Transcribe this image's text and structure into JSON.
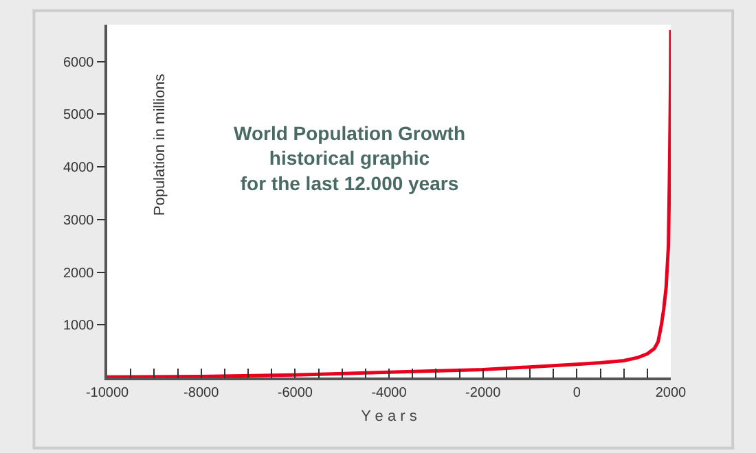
{
  "chart_data": {
    "type": "line",
    "title": "World Population Growth\nhistorical graphic\nfor the last 12.000 years",
    "xlabel": "Y e a r s",
    "ylabel": "Population in millions",
    "x": [
      -10000,
      -8000,
      -6000,
      -4000,
      -2000,
      0,
      500,
      1000,
      1300,
      1500,
      1650,
      1730,
      1800,
      1850,
      1900,
      1950,
      1970,
      1985,
      1995,
      2000
    ],
    "series": [
      {
        "color": "#e8001c",
        "values": [
          10,
          20,
          50,
          100,
          150,
          250,
          280,
          320,
          380,
          450,
          550,
          680,
          1000,
          1300,
          1700,
          2500,
          3700,
          4800,
          5700,
          6600
        ]
      }
    ],
    "xlim": [
      -10000,
      2000
    ],
    "ylim": [
      0,
      6700
    ],
    "xticks": [
      -10000,
      {
        "value": -9500,
        "label": null
      },
      -8000,
      {
        "value": -9000,
        "label": null
      },
      {
        "value": -8500,
        "label": null
      },
      {
        "value": -7500,
        "label": null
      },
      {
        "value": -7000,
        "label": null
      },
      {
        "value": -6500,
        "label": null
      },
      -6000,
      {
        "value": -5500,
        "label": null
      },
      {
        "value": -5000,
        "label": null
      },
      {
        "value": -4500,
        "label": null
      },
      -4000,
      {
        "value": -3500,
        "label": null
      },
      {
        "value": -3000,
        "label": null
      },
      {
        "value": -2500,
        "label": null
      },
      -2000,
      {
        "value": -1500,
        "label": null
      },
      {
        "value": -1000,
        "label": null
      },
      {
        "value": -500,
        "label": null
      },
      0,
      {
        "value": 500,
        "label": null
      },
      {
        "value": 1000,
        "label": null
      },
      {
        "value": 1500,
        "label": null
      },
      2000
    ],
    "yticks": [
      1000,
      2000,
      3000,
      4000,
      5000,
      6000
    ],
    "marker": "none",
    "line_style": "solid"
  }
}
